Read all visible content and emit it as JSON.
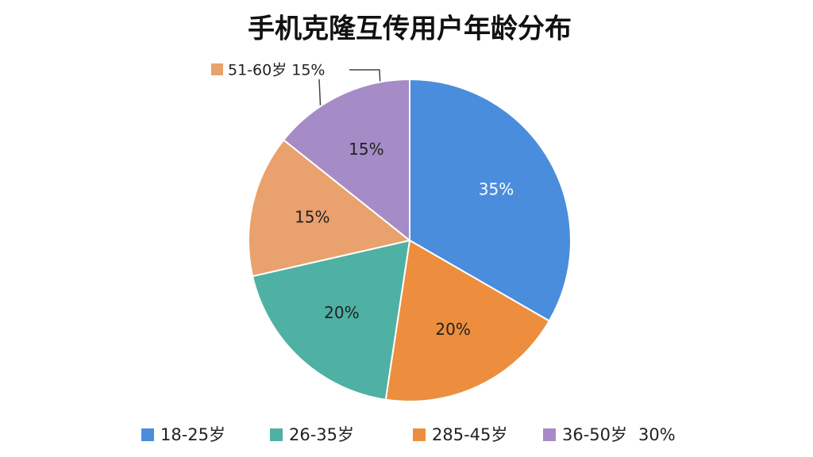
{
  "chart_data": {
    "type": "pie",
    "title": "手机克隆互传用户年龄分布",
    "values": [
      35,
      20,
      20,
      15,
      15
    ],
    "value_labels": [
      "35%",
      "20%",
      "20%",
      "15%",
      "15%"
    ],
    "colors": [
      "#4a8ddc",
      "#ec8e3e",
      "#4fb0a4",
      "#e9a16d",
      "#a58cc6"
    ],
    "annotation": "51-60岁 15%",
    "annotation_color": "#e9a16d",
    "legend": [
      {
        "label": "18-25岁",
        "color": "#4a8ddc"
      },
      {
        "label": "26-35岁",
        "color": "#4fb0a4"
      },
      {
        "label": "285-45岁",
        "color": "#ec8e3e"
      },
      {
        "label": "36-50岁",
        "color": "#a58cc6"
      }
    ],
    "legend_note": "30%"
  }
}
